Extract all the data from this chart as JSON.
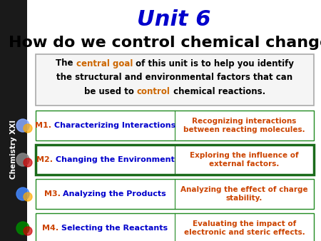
{
  "title1": "Unit 6",
  "title2": "How do we control chemical change?",
  "title1_color": "#0000CC",
  "title2_color": "#000000",
  "bg_color": "#FFFFFF",
  "sidebar_color": "#1a1a1a",
  "sidebar_text": "Chemistry XXI",
  "modules": [
    {
      "id": "M1. ",
      "title": "Characterizing Interactions",
      "description": "Recognizing interactions\nbetween reacting molecules.",
      "border_color": "#228B22",
      "bold_border": false
    },
    {
      "id": "M2. ",
      "title": "Changing the Environment",
      "description": "Exploring the influence of\nexternal factors.",
      "border_color": "#1a6b1a",
      "bold_border": true
    },
    {
      "id": "M3. ",
      "title": "Analyzing the Products",
      "description": "Analyzing the effect of charge\nstability.",
      "border_color": "#228B22",
      "bold_border": false
    },
    {
      "id": "M4. ",
      "title": "Selecting the Reactants",
      "description": "Evaluating the impact of\nelectronic and steric effects.",
      "border_color": "#228B22",
      "bold_border": false
    }
  ],
  "module_title_color": "#0000CC",
  "module_desc_color": "#CC4400",
  "module_id_color": "#CC4400",
  "goal_box_border": "#aaaaaa",
  "goal_box_bg": "#f5f5f5"
}
